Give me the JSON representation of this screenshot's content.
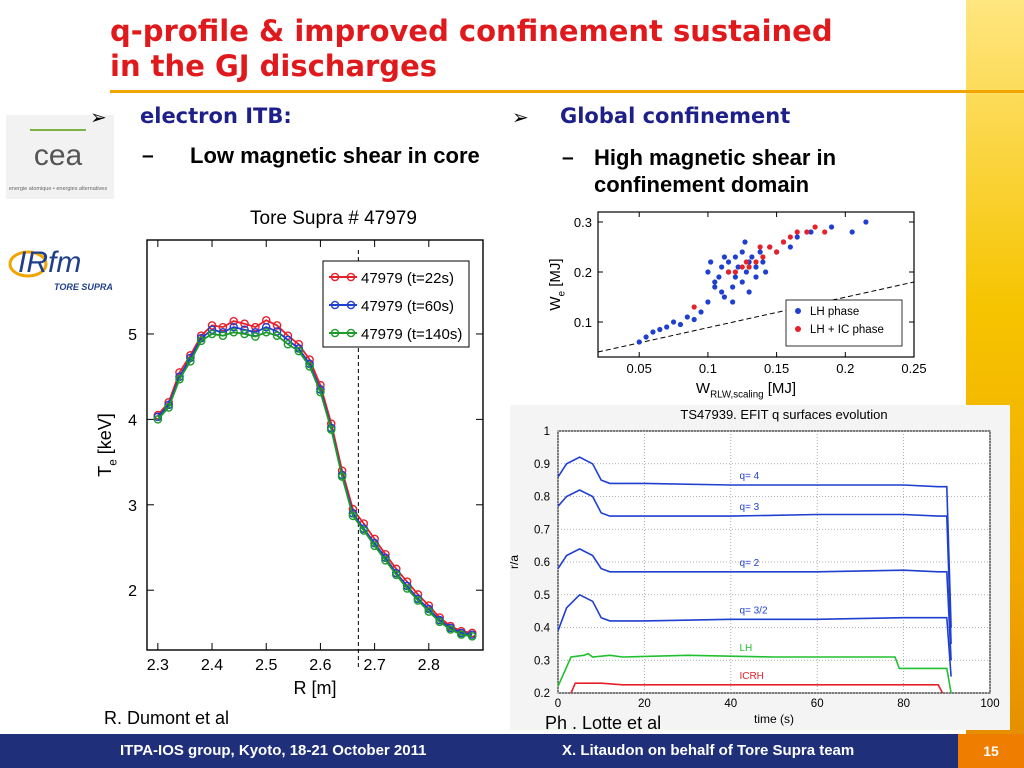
{
  "slide": {
    "title_line1": "q-profile & improved confinement sustained",
    "title_line2": "in the GJ discharges",
    "logo_cea": "cea",
    "logo_cea_sub": "energie atomique • energies alternatives",
    "logo_irfm": "IRfm",
    "logo_irfm_sub": "TORE SUPRA",
    "page_number": "15",
    "footer_left": "ITPA-IOS group, Kyoto, 18-21 October 2011",
    "footer_right": "X. Litaudon on behalf of Tore Supra team",
    "bullet_glyph": "➢",
    "dash_glyph": "–"
  },
  "left": {
    "heading": "electron ITB:",
    "sub": "Low magnetic shear in core",
    "caption": "Tore Supra # 47979",
    "credit": "R. Dumont et al"
  },
  "right": {
    "heading": "Global confinement",
    "sub": "High magnetic shear  in confinement domain",
    "credit": "Ph . Lotte et al"
  },
  "chart_data": [
    {
      "type": "line",
      "xlabel": "R [m]",
      "ylabel": "T_e [keV]",
      "xlim": [
        2.28,
        2.9
      ],
      "ylim": [
        1.3,
        6.1
      ],
      "xticks": [
        2.3,
        2.4,
        2.5,
        2.6,
        2.7,
        2.8
      ],
      "yticks": [
        2,
        3,
        4,
        5
      ],
      "vline": 2.67,
      "legend": "top-right",
      "x": [
        2.3,
        2.32,
        2.34,
        2.36,
        2.38,
        2.4,
        2.42,
        2.44,
        2.46,
        2.48,
        2.5,
        2.52,
        2.54,
        2.56,
        2.58,
        2.6,
        2.62,
        2.64,
        2.66,
        2.68,
        2.7,
        2.72,
        2.74,
        2.76,
        2.78,
        2.8,
        2.82,
        2.84,
        2.86,
        2.88
      ],
      "series": [
        {
          "name": "47979 (t=22s)",
          "color": "#e8202a",
          "values": [
            4.05,
            4.2,
            4.55,
            4.75,
            4.98,
            5.1,
            5.08,
            5.15,
            5.12,
            5.08,
            5.16,
            5.1,
            4.98,
            4.88,
            4.7,
            4.4,
            3.95,
            3.4,
            2.95,
            2.78,
            2.6,
            2.42,
            2.25,
            2.1,
            1.95,
            1.82,
            1.68,
            1.58,
            1.52,
            1.5
          ]
        },
        {
          "name": "47979 (t=60s)",
          "color": "#1f3fd0",
          "values": [
            4.03,
            4.17,
            4.5,
            4.72,
            4.95,
            5.05,
            5.02,
            5.08,
            5.05,
            5.02,
            5.08,
            5.03,
            4.93,
            4.83,
            4.65,
            4.35,
            3.9,
            3.35,
            2.9,
            2.72,
            2.55,
            2.38,
            2.2,
            2.05,
            1.9,
            1.78,
            1.65,
            1.56,
            1.5,
            1.48
          ]
        },
        {
          "name": "47979 (t=140s)",
          "color": "#1d9a2a",
          "values": [
            4.0,
            4.14,
            4.47,
            4.68,
            4.92,
            5.0,
            4.98,
            5.02,
            5.0,
            4.97,
            5.02,
            4.98,
            4.88,
            4.8,
            4.62,
            4.32,
            3.88,
            3.33,
            2.87,
            2.7,
            2.52,
            2.35,
            2.18,
            2.02,
            1.88,
            1.75,
            1.63,
            1.54,
            1.48,
            1.46
          ]
        }
      ]
    },
    {
      "type": "scatter",
      "xlabel": "W_RLW,scaling [MJ]",
      "ylabel": "W_e [MJ]",
      "xlim": [
        0.02,
        0.25
      ],
      "ylim": [
        0.03,
        0.32
      ],
      "xticks": [
        0.05,
        0.1,
        0.15,
        0.2,
        0.25
      ],
      "yticks": [
        0.1,
        0.2,
        0.3
      ],
      "legend": "bottom-right",
      "reference_line": [
        [
          0.02,
          0.04
        ],
        [
          0.25,
          0.18
        ]
      ],
      "series": [
        {
          "name": "LH phase",
          "color": "#1f3fd0",
          "points": [
            [
              0.05,
              0.06
            ],
            [
              0.055,
              0.07
            ],
            [
              0.06,
              0.08
            ],
            [
              0.065,
              0.085
            ],
            [
              0.07,
              0.09
            ],
            [
              0.075,
              0.1
            ],
            [
              0.08,
              0.095
            ],
            [
              0.085,
              0.11
            ],
            [
              0.09,
              0.105
            ],
            [
              0.095,
              0.12
            ],
            [
              0.1,
              0.14
            ],
            [
              0.1,
              0.2
            ],
            [
              0.102,
              0.22
            ],
            [
              0.105,
              0.18
            ],
            [
              0.108,
              0.19
            ],
            [
              0.11,
              0.21
            ],
            [
              0.11,
              0.16
            ],
            [
              0.112,
              0.15
            ],
            [
              0.115,
              0.2
            ],
            [
              0.115,
              0.22
            ],
            [
              0.118,
              0.17
            ],
            [
              0.12,
              0.23
            ],
            [
              0.12,
              0.19
            ],
            [
              0.122,
              0.21
            ],
            [
              0.125,
              0.18
            ],
            [
              0.125,
              0.24
            ],
            [
              0.128,
              0.2
            ],
            [
              0.13,
              0.22
            ],
            [
              0.13,
              0.16
            ],
            [
              0.132,
              0.23
            ],
            [
              0.135,
              0.21
            ],
            [
              0.135,
              0.19
            ],
            [
              0.138,
              0.24
            ],
            [
              0.14,
              0.22
            ],
            [
              0.142,
              0.2
            ],
            [
              0.145,
              0.25
            ],
            [
              0.15,
              0.24
            ],
            [
              0.155,
              0.26
            ],
            [
              0.16,
              0.25
            ],
            [
              0.165,
              0.27
            ],
            [
              0.175,
              0.28
            ],
            [
              0.19,
              0.29
            ],
            [
              0.205,
              0.28
            ],
            [
              0.215,
              0.3
            ],
            [
              0.105,
              0.17
            ],
            [
              0.112,
              0.23
            ],
            [
              0.127,
              0.26
            ],
            [
              0.118,
              0.14
            ]
          ]
        },
        {
          "name": "LH + IC phase",
          "color": "#e8202a",
          "points": [
            [
              0.09,
              0.13
            ],
            [
              0.115,
              0.2
            ],
            [
              0.12,
              0.2
            ],
            [
              0.125,
              0.21
            ],
            [
              0.128,
              0.22
            ],
            [
              0.13,
              0.21
            ],
            [
              0.135,
              0.22
            ],
            [
              0.14,
              0.23
            ],
            [
              0.145,
              0.25
            ],
            [
              0.15,
              0.24
            ],
            [
              0.155,
              0.26
            ],
            [
              0.16,
              0.27
            ],
            [
              0.165,
              0.28
            ],
            [
              0.172,
              0.28
            ],
            [
              0.178,
              0.29
            ],
            [
              0.185,
              0.28
            ],
            [
              0.138,
              0.25
            ]
          ]
        }
      ]
    },
    {
      "type": "line",
      "title": "TS47939. EFIT q surfaces evolution",
      "xlabel": "time (s)",
      "ylabel": "r/a",
      "xlim": [
        0,
        100
      ],
      "ylim": [
        0.2,
        1
      ],
      "xticks": [
        0,
        20,
        40,
        60,
        80,
        100
      ],
      "yticks": [
        0.2,
        0.3,
        0.4,
        0.5,
        0.6,
        0.7,
        0.8,
        0.9,
        1
      ],
      "series": [
        {
          "name": "q= 4",
          "color": "#1f3fd0",
          "points": [
            [
              0,
              0.86
            ],
            [
              2,
              0.9
            ],
            [
              5,
              0.92
            ],
            [
              8,
              0.9
            ],
            [
              10,
              0.85
            ],
            [
              12,
              0.84
            ],
            [
              20,
              0.84
            ],
            [
              40,
              0.835
            ],
            [
              60,
              0.835
            ],
            [
              80,
              0.835
            ],
            [
              88,
              0.83
            ],
            [
              90,
              0.83
            ],
            [
              91,
              0.4
            ]
          ]
        },
        {
          "name": "q= 3",
          "color": "#1f3fd0",
          "points": [
            [
              0,
              0.77
            ],
            [
              2,
              0.8
            ],
            [
              5,
              0.82
            ],
            [
              8,
              0.8
            ],
            [
              10,
              0.75
            ],
            [
              12,
              0.74
            ],
            [
              20,
              0.74
            ],
            [
              40,
              0.74
            ],
            [
              60,
              0.745
            ],
            [
              80,
              0.745
            ],
            [
              88,
              0.74
            ],
            [
              90,
              0.74
            ],
            [
              91,
              0.35
            ]
          ]
        },
        {
          "name": "q= 2",
          "color": "#1f3fd0",
          "points": [
            [
              0,
              0.58
            ],
            [
              2,
              0.62
            ],
            [
              5,
              0.64
            ],
            [
              8,
              0.62
            ],
            [
              10,
              0.58
            ],
            [
              12,
              0.57
            ],
            [
              20,
              0.57
            ],
            [
              40,
              0.57
            ],
            [
              60,
              0.57
            ],
            [
              80,
              0.575
            ],
            [
              88,
              0.57
            ],
            [
              90,
              0.57
            ],
            [
              91,
              0.3
            ]
          ]
        },
        {
          "name": "q= 3/2",
          "color": "#1f3fd0",
          "points": [
            [
              0,
              0.39
            ],
            [
              2,
              0.46
            ],
            [
              5,
              0.5
            ],
            [
              8,
              0.48
            ],
            [
              10,
              0.43
            ],
            [
              12,
              0.42
            ],
            [
              20,
              0.42
            ],
            [
              40,
              0.425
            ],
            [
              60,
              0.425
            ],
            [
              80,
              0.43
            ],
            [
              88,
              0.43
            ],
            [
              90,
              0.43
            ],
            [
              91,
              0.25
            ]
          ]
        },
        {
          "name": "LH",
          "color": "#21c030",
          "points": [
            [
              0,
              0.22
            ],
            [
              3,
              0.31
            ],
            [
              6,
              0.315
            ],
            [
              7,
              0.32
            ],
            [
              8,
              0.31
            ],
            [
              12,
              0.315
            ],
            [
              15,
              0.31
            ],
            [
              30,
              0.315
            ],
            [
              50,
              0.31
            ],
            [
              78,
              0.31
            ],
            [
              79,
              0.275
            ],
            [
              90,
              0.275
            ],
            [
              91,
              0.2
            ]
          ]
        },
        {
          "name": "ICRH",
          "color": "#e8202a",
          "points": [
            [
              3,
              0.2
            ],
            [
              4,
              0.23
            ],
            [
              10,
              0.23
            ],
            [
              15,
              0.225
            ],
            [
              30,
              0.225
            ],
            [
              60,
              0.225
            ],
            [
              88,
              0.225
            ],
            [
              89,
              0.2
            ]
          ]
        }
      ]
    }
  ]
}
